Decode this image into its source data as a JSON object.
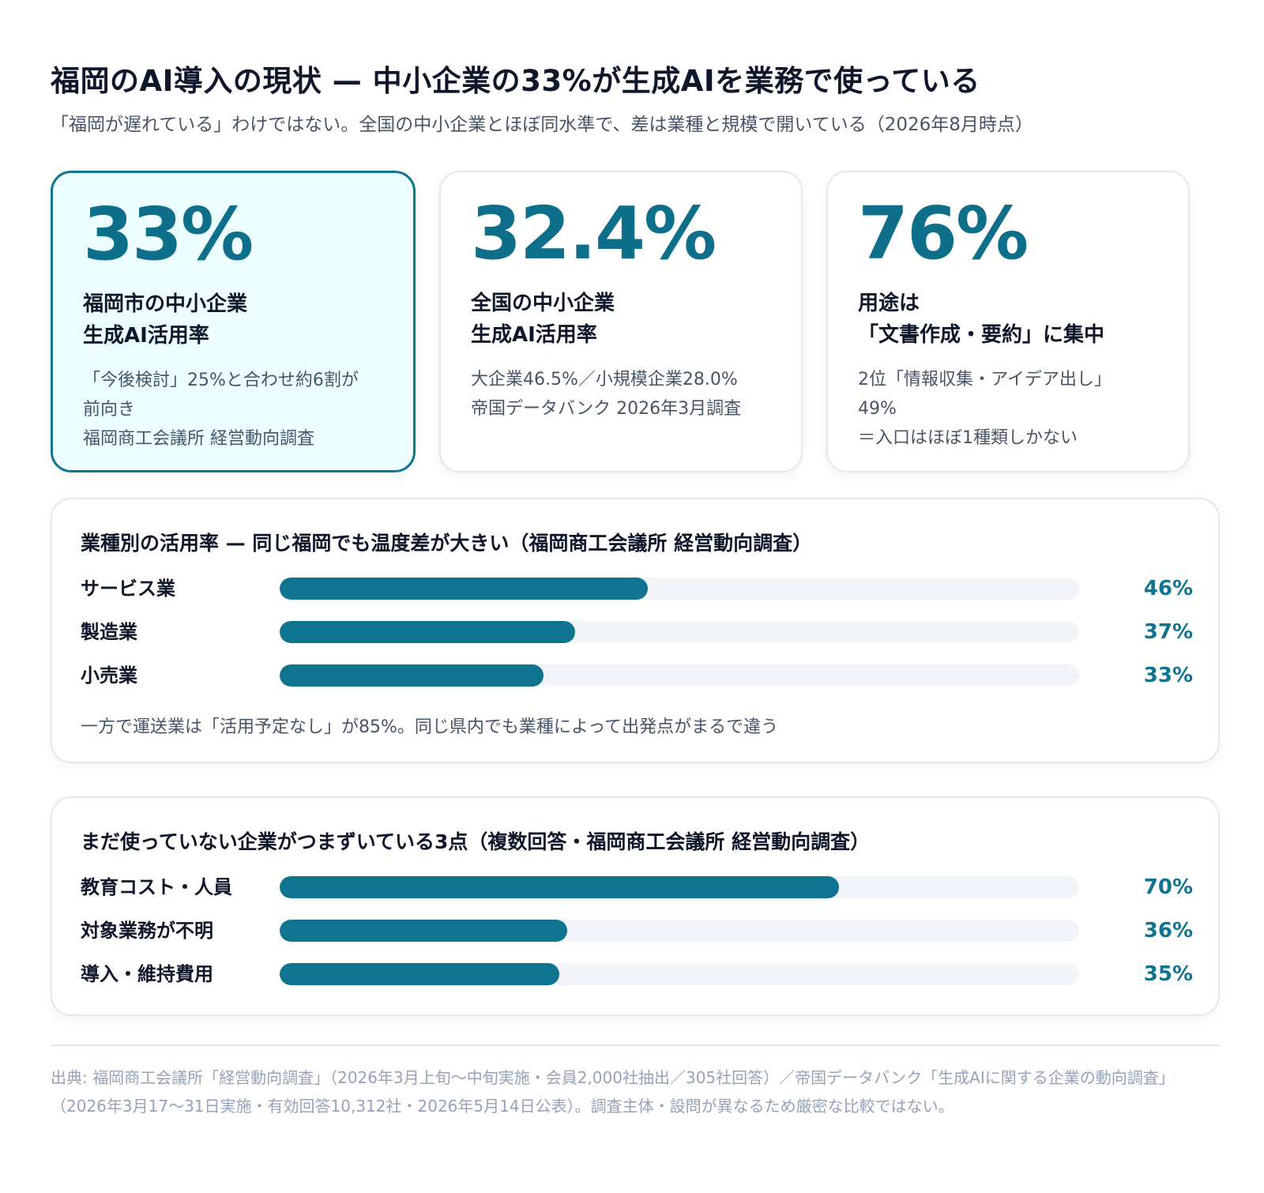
{
  "header": {
    "title": "福岡のAI導入の現状 — 中小企業の33%が生成AIを業務で使っている",
    "subtitle": "「福岡が遅れている」わけではない。全国の中小企業とほぼ同水準で、差は業種と規模で開いている（2026年8月時点）"
  },
  "cards": [
    {
      "value": "33%",
      "head": [
        "福岡市の中小企業",
        "生成AI活用率"
      ],
      "desc": [
        "「今後検討」25%と合わせ約6割が",
        "前向き",
        "福岡商工会議所 経営動向調査"
      ]
    },
    {
      "value": "32.4%",
      "head": [
        "全国の中小企業",
        "生成AI活用率"
      ],
      "desc": [
        "大企業46.5%／小規模企業28.0%",
        "帝国データバンク 2026年3月調査"
      ]
    },
    {
      "value": "76%",
      "head": [
        "用途は",
        "「文書作成・要約」に集中"
      ],
      "desc": [
        "2位「情報収集・アイデア出し」",
        "49%",
        "＝入口はほぼ1種類しかない"
      ]
    }
  ],
  "colors": {
    "accent": "#0e7490",
    "track": "#f1f5f9",
    "highlight_bg": "#ecfeff"
  },
  "chart_data": [
    {
      "type": "bar",
      "title": "業種別の活用率 — 同じ福岡でも温度差が大きい（福岡商工会議所 経営動向調査）",
      "categories": [
        "サービス業",
        "製造業",
        "小売業"
      ],
      "values": [
        46,
        37,
        33
      ],
      "value_labels": [
        "46%",
        "37%",
        "33%"
      ],
      "xlim": [
        0,
        100
      ],
      "note": "一方で運送業は「活用予定なし」が85%。同じ県内でも業種によって出発点がまるで違う"
    },
    {
      "type": "bar",
      "title": "まだ使っていない企業がつまずいている3点（複数回答・福岡商工会議所 経営動向調査）",
      "categories": [
        "教育コスト・人員",
        "対象業務が不明",
        "導入・維持費用"
      ],
      "values": [
        70,
        36,
        35
      ],
      "value_labels": [
        "70%",
        "36%",
        "35%"
      ],
      "xlim": [
        0,
        100
      ]
    }
  ],
  "source": "出典: 福岡商工会議所「経営動向調査」（2026年3月上旬〜中旬実施・会員2,000社抽出／305社回答）／帝国データバンク「生成AIに関する企業の動向調査」（2026年3月17〜31日実施・有効回答10,312社・2026年5月14日公表）。調査主体・設問が異なるため厳密な比較ではない。"
}
